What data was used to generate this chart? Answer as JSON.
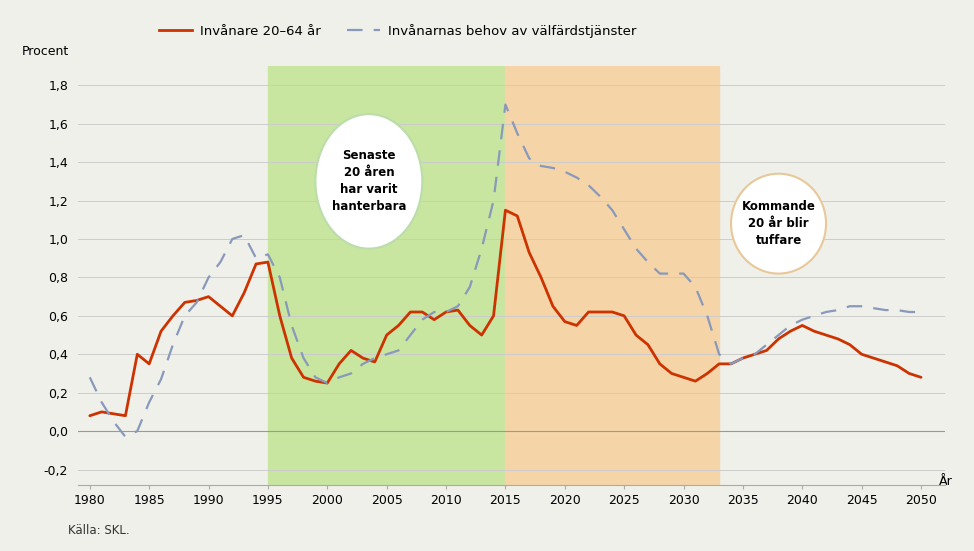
{
  "title_ylabel": "Procent",
  "title_xlabel": "År",
  "legend1": "Invånare 20–64 år",
  "legend2": "Invånarnas behov av välfärdstjänster",
  "source": "Källa: SKL.",
  "annotation1": "Senaste\n20 åren\nhar varit\nhanterbara",
  "annotation2": "Kommande\n20 år blir\ntuffare",
  "green_region": [
    1995,
    2015
  ],
  "orange_region": [
    2015,
    2033
  ],
  "ylim": [
    -0.28,
    1.9
  ],
  "xlim": [
    1979,
    2052
  ],
  "yticks": [
    -0.2,
    0.0,
    0.2,
    0.4,
    0.6,
    0.8,
    1.0,
    1.2,
    1.4,
    1.6,
    1.8
  ],
  "xticks": [
    1980,
    1985,
    1990,
    1995,
    2000,
    2005,
    2010,
    2015,
    2020,
    2025,
    2030,
    2035,
    2040,
    2045,
    2050
  ],
  "line1_color": "#cc3300",
  "line2_color": "#8899bb",
  "bg_color": "#f0f0eb",
  "green_color": "#c8e6a0",
  "orange_color": "#f5d5a8",
  "line1_x": [
    1980,
    1981,
    1982,
    1983,
    1984,
    1985,
    1986,
    1987,
    1988,
    1989,
    1990,
    1991,
    1992,
    1993,
    1994,
    1995,
    1996,
    1997,
    1998,
    1999,
    2000,
    2001,
    2002,
    2003,
    2004,
    2005,
    2006,
    2007,
    2008,
    2009,
    2010,
    2011,
    2012,
    2013,
    2014,
    2015,
    2016,
    2017,
    2018,
    2019,
    2020,
    2021,
    2022,
    2023,
    2024,
    2025,
    2026,
    2027,
    2028,
    2029,
    2030,
    2031,
    2032,
    2033,
    2034,
    2035,
    2036,
    2037,
    2038,
    2039,
    2040,
    2041,
    2042,
    2043,
    2044,
    2045,
    2046,
    2047,
    2048,
    2049,
    2050
  ],
  "line1_y": [
    0.08,
    0.1,
    0.09,
    0.08,
    0.4,
    0.35,
    0.52,
    0.6,
    0.67,
    0.68,
    0.7,
    0.65,
    0.6,
    0.72,
    0.87,
    0.88,
    0.6,
    0.38,
    0.28,
    0.26,
    0.25,
    0.35,
    0.42,
    0.38,
    0.36,
    0.5,
    0.55,
    0.62,
    0.62,
    0.58,
    0.62,
    0.63,
    0.55,
    0.5,
    0.6,
    1.15,
    1.12,
    0.93,
    0.8,
    0.65,
    0.57,
    0.55,
    0.62,
    0.62,
    0.62,
    0.6,
    0.5,
    0.45,
    0.35,
    0.3,
    0.28,
    0.26,
    0.3,
    0.35,
    0.35,
    0.38,
    0.4,
    0.42,
    0.48,
    0.52,
    0.55,
    0.52,
    0.5,
    0.48,
    0.45,
    0.4,
    0.38,
    0.36,
    0.34,
    0.3,
    0.28
  ],
  "line2_x": [
    1980,
    1981,
    1982,
    1983,
    1984,
    1985,
    1986,
    1987,
    1988,
    1989,
    1990,
    1991,
    1992,
    1993,
    1994,
    1995,
    1996,
    1997,
    1998,
    1999,
    2000,
    2001,
    2002,
    2003,
    2004,
    2005,
    2006,
    2007,
    2008,
    2009,
    2010,
    2011,
    2012,
    2013,
    2014,
    2015,
    2016,
    2017,
    2018,
    2019,
    2020,
    2021,
    2022,
    2023,
    2024,
    2025,
    2026,
    2027,
    2028,
    2029,
    2030,
    2031,
    2032,
    2033,
    2034,
    2035,
    2036,
    2037,
    2038,
    2039,
    2040,
    2041,
    2042,
    2043,
    2044,
    2045,
    2046,
    2047,
    2048,
    2049,
    2050
  ],
  "line2_y": [
    0.28,
    0.15,
    0.05,
    -0.03,
    0.0,
    0.15,
    0.27,
    0.45,
    0.6,
    0.67,
    0.8,
    0.88,
    1.0,
    1.02,
    0.9,
    0.92,
    0.8,
    0.55,
    0.38,
    0.28,
    0.25,
    0.28,
    0.3,
    0.35,
    0.38,
    0.4,
    0.42,
    0.5,
    0.58,
    0.62,
    0.62,
    0.65,
    0.75,
    0.95,
    1.2,
    1.7,
    1.55,
    1.42,
    1.38,
    1.37,
    1.35,
    1.32,
    1.28,
    1.22,
    1.15,
    1.05,
    0.95,
    0.88,
    0.82,
    0.82,
    0.82,
    0.75,
    0.6,
    0.4,
    0.35,
    0.38,
    0.4,
    0.45,
    0.5,
    0.55,
    0.58,
    0.6,
    0.62,
    0.63,
    0.65,
    0.65,
    0.64,
    0.63,
    0.63,
    0.62,
    0.62
  ]
}
